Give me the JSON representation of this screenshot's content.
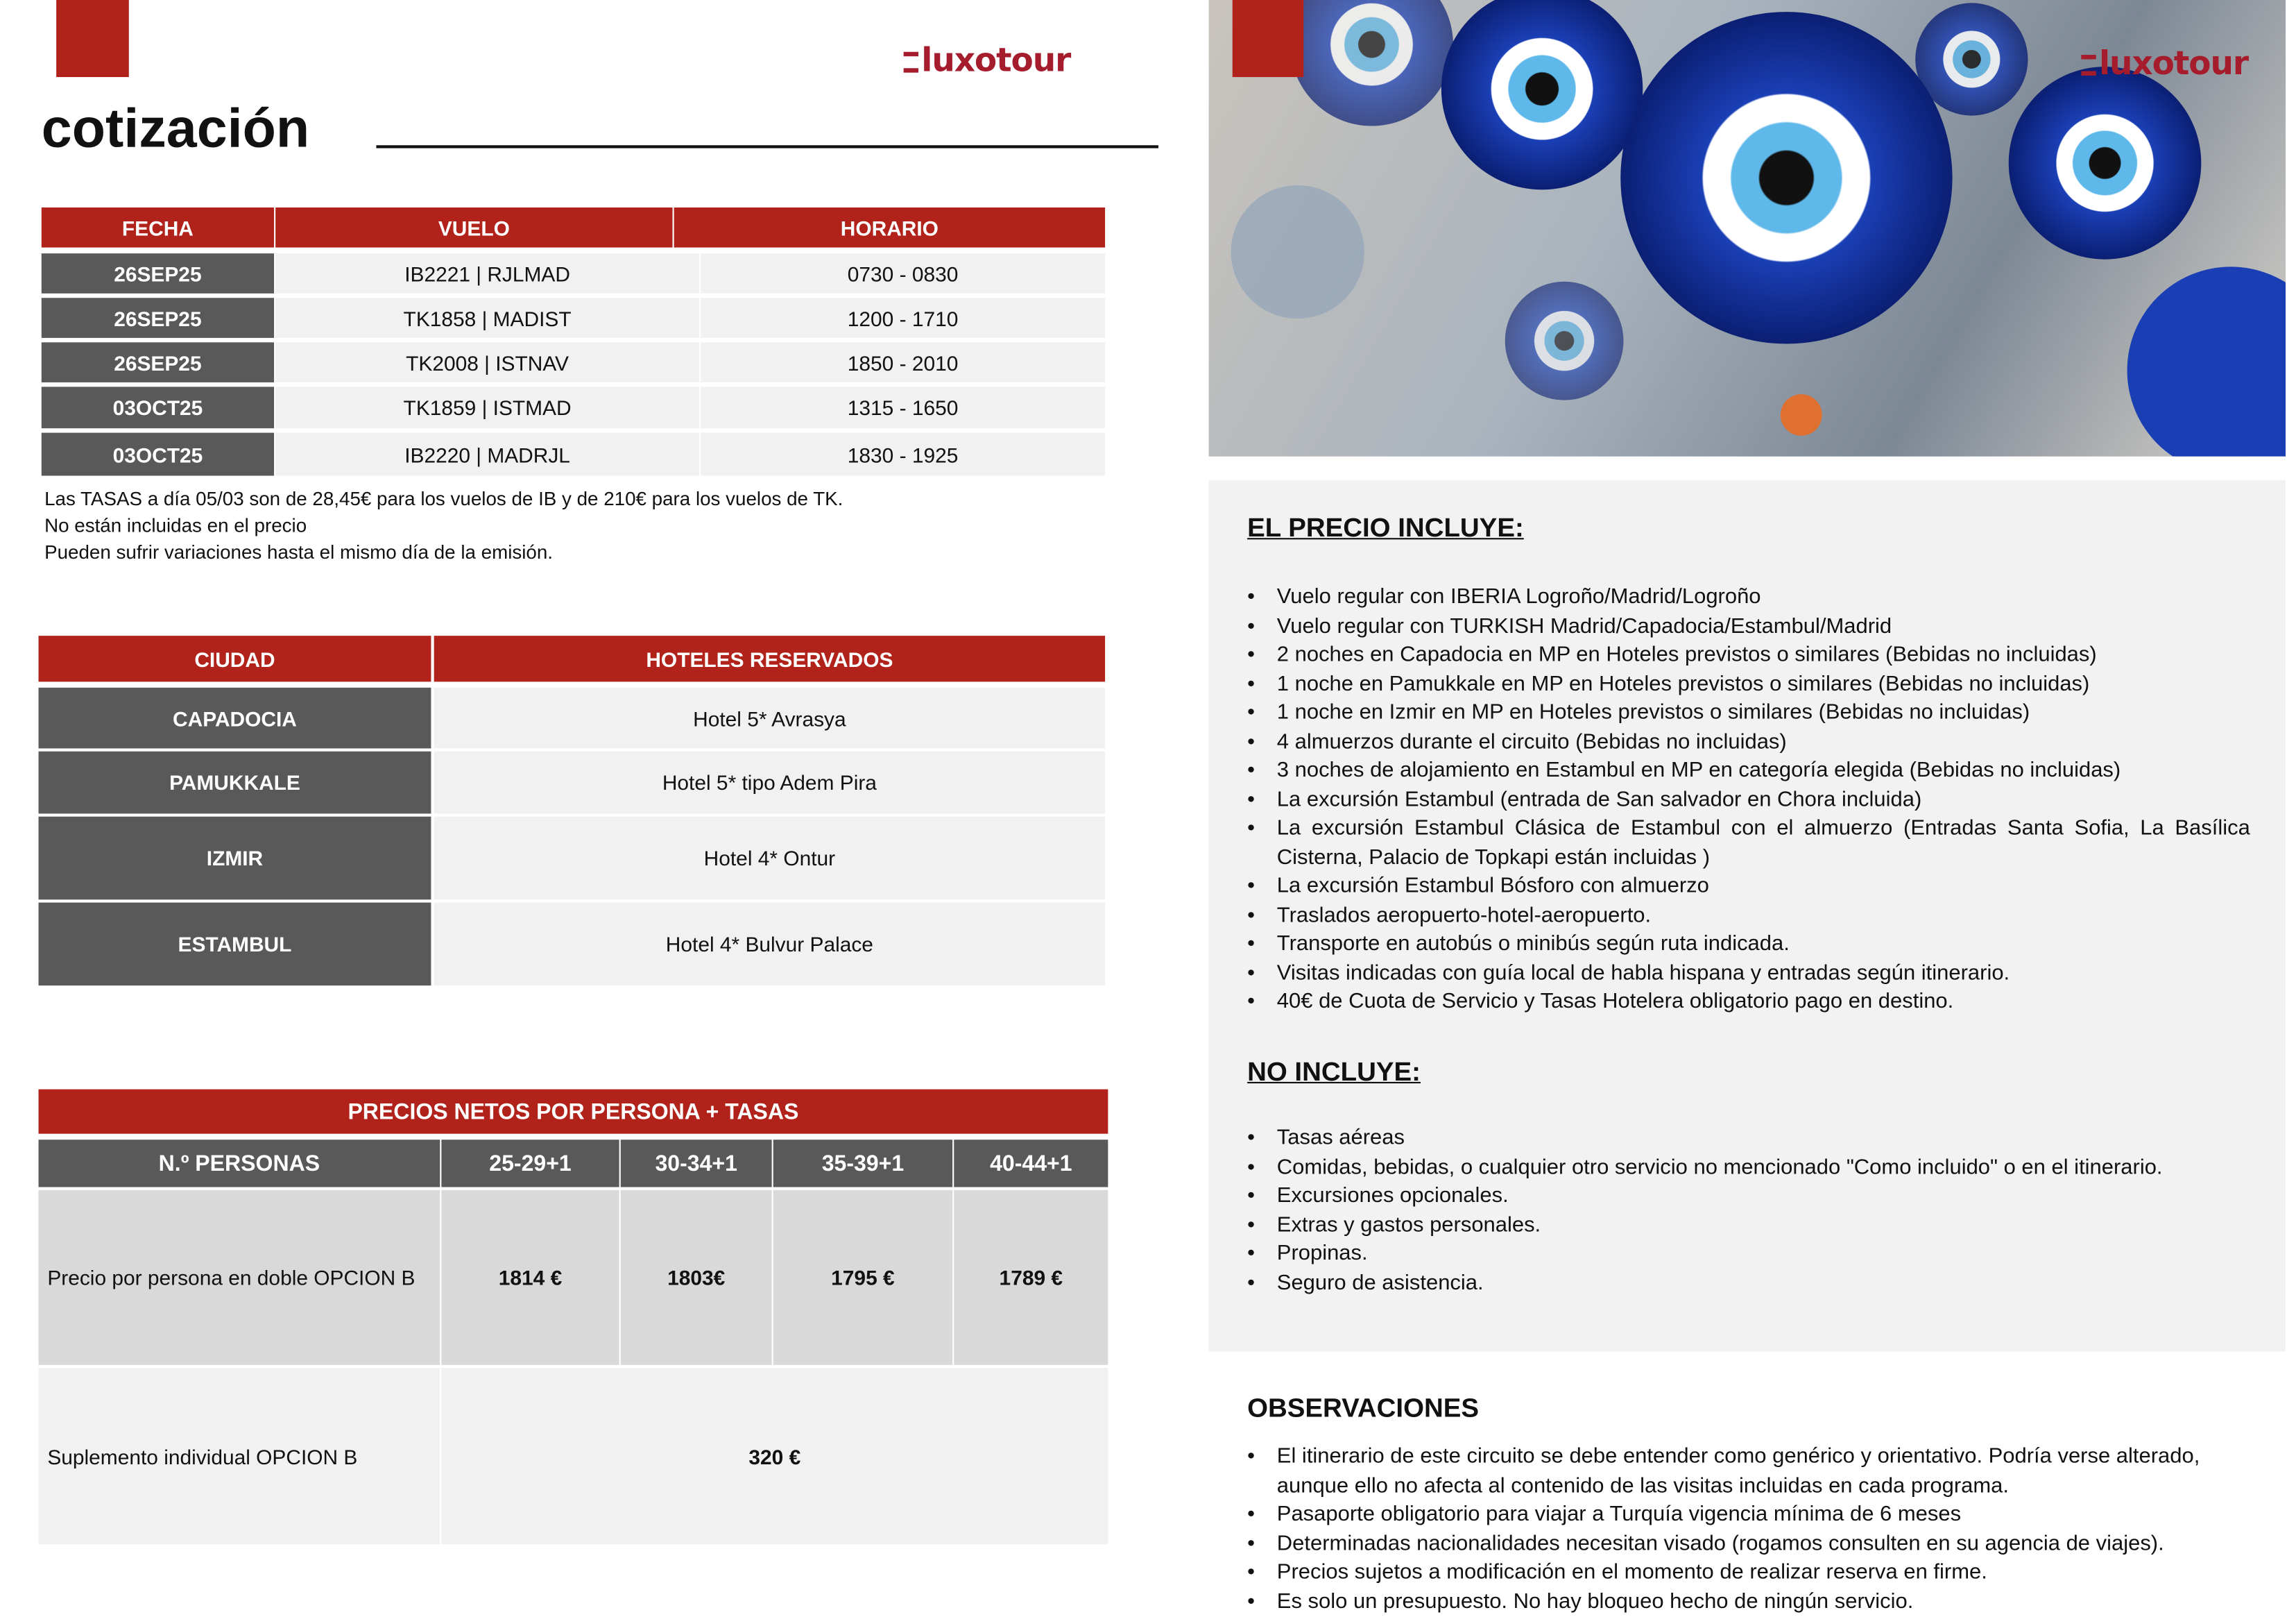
{
  "brand": {
    "logo": "luxotour",
    "accent": "#b0221a"
  },
  "title": "cotización",
  "flights": {
    "headers": [
      "FECHA",
      "VUELO",
      "HORARIO"
    ],
    "rows": [
      [
        "26SEP25",
        "IB2221 | RJLMAD",
        "0730 - 0830"
      ],
      [
        "26SEP25",
        "TK1858 | MADIST",
        "1200 - 1710"
      ],
      [
        "26SEP25",
        "TK2008 | ISTNAV",
        "1850 - 2010"
      ],
      [
        "03OCT25",
        "TK1859 | ISTMAD",
        "1315 - 1650"
      ],
      [
        "03OCT25",
        "IB2220 | MADRJL",
        "1830 - 1925"
      ]
    ],
    "notes": [
      "Las TASAS a día 05/03 son de 28,45€ para los vuelos de IB y de 210€ para los vuelos de TK.",
      "No están incluidas en el precio",
      "Pueden sufrir variaciones hasta el mismo día de la emisión."
    ]
  },
  "hotels": {
    "headers": [
      "CIUDAD",
      "HOTELES RESERVADOS"
    ],
    "rows": [
      [
        "CAPADOCIA",
        "Hotel 5* Avrasya"
      ],
      [
        "PAMUKKALE",
        "Hotel 5* tipo Adem Pira"
      ],
      [
        "IZMIR",
        "Hotel 4* Ontur"
      ],
      [
        "ESTAMBUL",
        "Hotel 4* Bulvur Palace"
      ]
    ]
  },
  "prices": {
    "title": "PRECIOS NETOS POR PERSONA + TASAS",
    "headers": [
      "N.º PERSONAS",
      "25-29+1",
      "30-34+1",
      "35-39+1",
      "40-44+1"
    ],
    "double": {
      "label": "Precio por persona en doble OPCION B",
      "values": [
        "1814 €",
        "1803€",
        "1795 €",
        "1789 €"
      ]
    },
    "single": {
      "label": "Suplemento individual OPCION B",
      "value": "320 €"
    }
  },
  "includes": {
    "title": "EL PRECIO INCLUYE:",
    "items": [
      "Vuelo regular con IBERIA Logroño/Madrid/Logroño",
      "Vuelo regular con TURKISH Madrid/Capadocia/Estambul/Madrid",
      "2 noches en Capadocia en MP en Hoteles previstos o similares (Bebidas no incluidas)",
      "1 noche en Pamukkale en MP en Hoteles previstos o similares (Bebidas no incluidas)",
      "1 noche en Izmir en MP en Hoteles previstos o similares (Bebidas no incluidas)",
      "4 almuerzos  durante el circuito (Bebidas no incluidas)",
      "3 noches de alojamiento en Estambul en MP en categoría elegida (Bebidas no incluidas)",
      "La excursión Estambul (entrada de San salvador en Chora incluida)",
      "La excursión Estambul Clásica de Estambul con el almuerzo (Entradas Santa Sofia, La Basílica Cisterna, Palacio de Topkapi están incluidas )",
      "La excursión Estambul Bósforo con almuerzo",
      "Traslados aeropuerto-hotel-aeropuerto.",
      "Transporte en autobús o minibús según ruta indicada.",
      "Visitas indicadas con guía local de habla hispana y entradas según itinerario.",
      "40€ de Cuota de Servicio y Tasas Hotelera obligatorio pago en destino."
    ]
  },
  "excludes": {
    "title": "NO INCLUYE:",
    "items": [
      "Tasas aéreas",
      "Comidas, bebidas, o cualquier otro servicio no mencionado \"Como incluido\" o en el itinerario.",
      "Excursiones opcionales.",
      "Extras y gastos personales.",
      "Propinas.",
      "Seguro de asistencia."
    ]
  },
  "observations": {
    "title": "OBSERVACIONES",
    "items": [
      "El itinerario de este circuito se debe entender como genérico y orientativo. Podría verse alterado, aunque ello no afecta al contenido de las visitas incluidas en cada programa.",
      "Pasaporte obligatorio para viajar a Turquía vigencia mínima de 6 meses",
      "Determinadas nacionalidades necesitan visado (rogamos consulten en su agencia de viajes).",
      "Precios sujetos a modificación en el momento de realizar reserva en firme.",
      "Es solo un presupuesto. No hay bloqueo hecho de ningún servicio."
    ]
  }
}
